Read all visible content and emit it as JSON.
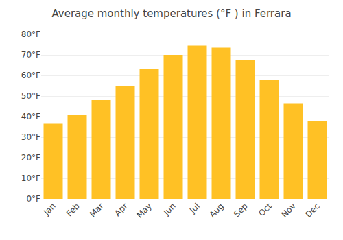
{
  "chart_data": {
    "type": "bar",
    "title": "Average monthly temperatures (°F ) in Ferrara",
    "categories": [
      "Jan",
      "Feb",
      "Mar",
      "Apr",
      "May",
      "Jun",
      "Jul",
      "Aug",
      "Sep",
      "Oct",
      "Nov",
      "Dec"
    ],
    "values": [
      36.5,
      41.0,
      48.0,
      55.0,
      63.0,
      70.0,
      74.5,
      73.5,
      67.5,
      58.0,
      46.5,
      38.0
    ],
    "color": "#FFC125",
    "ylim": [
      0,
      80
    ],
    "yticks": [
      {
        "value": 0,
        "label": "0°F"
      },
      {
        "value": 10,
        "label": "10°F"
      },
      {
        "value": 20,
        "label": "20°F"
      },
      {
        "value": 30,
        "label": "30°F"
      },
      {
        "value": 40,
        "label": "40°F"
      },
      {
        "value": 50,
        "label": "50°F"
      },
      {
        "value": 60,
        "label": "60°F"
      },
      {
        "value": 70,
        "label": "70°F"
      },
      {
        "value": 80,
        "label": "80°F"
      }
    ],
    "grid": true
  }
}
